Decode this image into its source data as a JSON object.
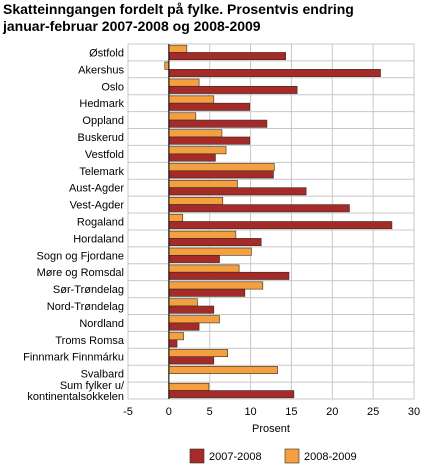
{
  "chart_data": {
    "type": "bar",
    "orientation": "horizontal",
    "title": "Skatteinngangen fordelt på  fylke. Prosentvis endring januar-februar 2007-2008 og 2008-2009",
    "title_lines": [
      "Skatteinngangen fordelt på  fylke. Prosentvis endring",
      "januar-februar 2007-2008 og 2008-2009"
    ],
    "xlabel": "Prosent",
    "ylabel": "",
    "xlim": [
      -5,
      30
    ],
    "xticks": [
      "-5",
      "0",
      "5",
      "10",
      "15",
      "20",
      "25",
      "30"
    ],
    "grid": true,
    "legend_position": "bottom",
    "categories": [
      [
        "Østfold"
      ],
      [
        "Akershus"
      ],
      [
        "Oslo"
      ],
      [
        "Hedmark"
      ],
      [
        "Oppland"
      ],
      [
        "Buskerud"
      ],
      [
        "Vestfold"
      ],
      [
        "Telemark"
      ],
      [
        "Aust-Agder"
      ],
      [
        "Vest-Agder"
      ],
      [
        "Rogaland"
      ],
      [
        "Hordaland"
      ],
      [
        "Sogn og Fjordane"
      ],
      [
        "Møre og Romsdal"
      ],
      [
        "Sør-Trøndelag"
      ],
      [
        "Nord-Trøndelag"
      ],
      [
        "Nordland"
      ],
      [
        "Troms Romsa"
      ],
      [
        "Finnmark Finnmárku"
      ],
      [
        "Svalbard"
      ],
      [
        "Sum fylker u/",
        "kontinentalsokkelen"
      ]
    ],
    "series": [
      {
        "name": "2007-2008",
        "color": "#a52a2a",
        "values": [
          14.3,
          25.9,
          15.7,
          9.9,
          12.0,
          9.9,
          5.7,
          12.8,
          16.8,
          22.1,
          27.3,
          11.3,
          6.2,
          14.7,
          9.3,
          5.5,
          3.7,
          1.0,
          5.5,
          0,
          15.3
        ]
      },
      {
        "name": "2008-2009",
        "color": "#f5a040",
        "values": [
          2.2,
          -0.5,
          3.7,
          5.5,
          3.3,
          6.5,
          7.0,
          12.9,
          8.4,
          6.6,
          1.7,
          8.2,
          10.1,
          8.6,
          11.5,
          3.5,
          6.2,
          1.8,
          7.2,
          13.3,
          4.9
        ]
      }
    ]
  }
}
